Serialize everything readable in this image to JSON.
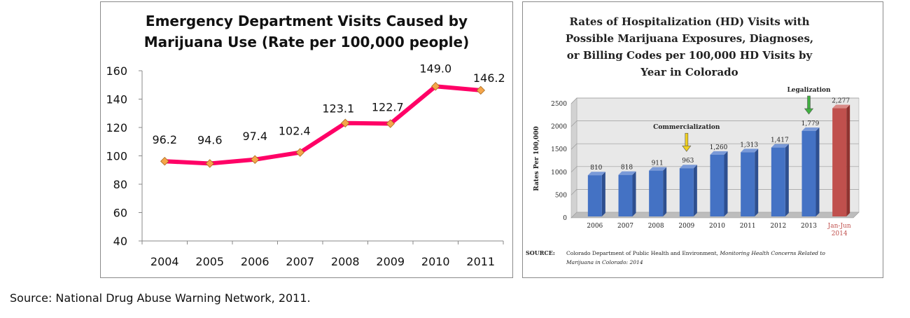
{
  "chart_data": [
    {
      "type": "line",
      "title": [
        "Emergency Department Visits Caused by",
        "Marijuana Use (Rate per 100,000 people)"
      ],
      "categories": [
        "2004",
        "2005",
        "2006",
        "2007",
        "2008",
        "2009",
        "2010",
        "2011"
      ],
      "values": [
        96.2,
        94.6,
        97.4,
        102.4,
        123.1,
        122.7,
        149.0,
        146.2
      ],
      "value_labels": [
        "96.2",
        "94.6",
        "97.4",
        "102.4",
        "123.1",
        "122.7",
        "149.0",
        "146.2"
      ],
      "ylim": [
        40,
        160
      ],
      "yticks": [
        40,
        60,
        80,
        100,
        120,
        140,
        160
      ],
      "line_color": "#ff0066",
      "marker_color": "#f5a54a",
      "grid": false
    },
    {
      "type": "bar",
      "title": [
        "Rates of Hospitalization (HD) Visits with",
        "Possible Marijuana Exposures, Diagnoses,",
        "or Billing Codes per 100,000 HD Visits by",
        "Year in Colorado"
      ],
      "ylabel": "Rates Per 100,000",
      "categories": [
        "2006",
        "2007",
        "2008",
        "2009",
        "2010",
        "2011",
        "2012",
        "2013",
        "Jan-Jun 2014"
      ],
      "category_lines": [
        [
          "2006"
        ],
        [
          "2007"
        ],
        [
          "2008"
        ],
        [
          "2009"
        ],
        [
          "2010"
        ],
        [
          "2011"
        ],
        [
          "2012"
        ],
        [
          "2013"
        ],
        [
          "Jan-Jun",
          "2014"
        ]
      ],
      "values": [
        810,
        818,
        911,
        963,
        1260,
        1313,
        1417,
        1779,
        2277
      ],
      "value_labels": [
        "810",
        "818",
        "911",
        "963",
        "1,260",
        "1,313",
        "1,417",
        "1,779",
        "2,277"
      ],
      "ylim": [
        0,
        2500
      ],
      "yticks": [
        0,
        500,
        1000,
        1500,
        2000,
        2500
      ],
      "bar_color": "#4472c4",
      "highlight_color": "#c0504d",
      "highlight_label_color": "#c0504d",
      "annotations": [
        {
          "label": "Commercialization",
          "category": "2009",
          "arrow_color": "#f0d020"
        },
        {
          "label": "Legalization",
          "category": "2013",
          "arrow_color": "#40b040"
        }
      ],
      "source_label": "SOURCE:",
      "source_text_plain": "Colorado Department of Public Health and Environment, ",
      "source_text_italic_1": "Monitoring Health Concerns Related to",
      "source_text_italic_2": "Marijuana in Colorado: 2014"
    }
  ],
  "caption": "Source: National Drug Abuse Warning Network, 2011."
}
